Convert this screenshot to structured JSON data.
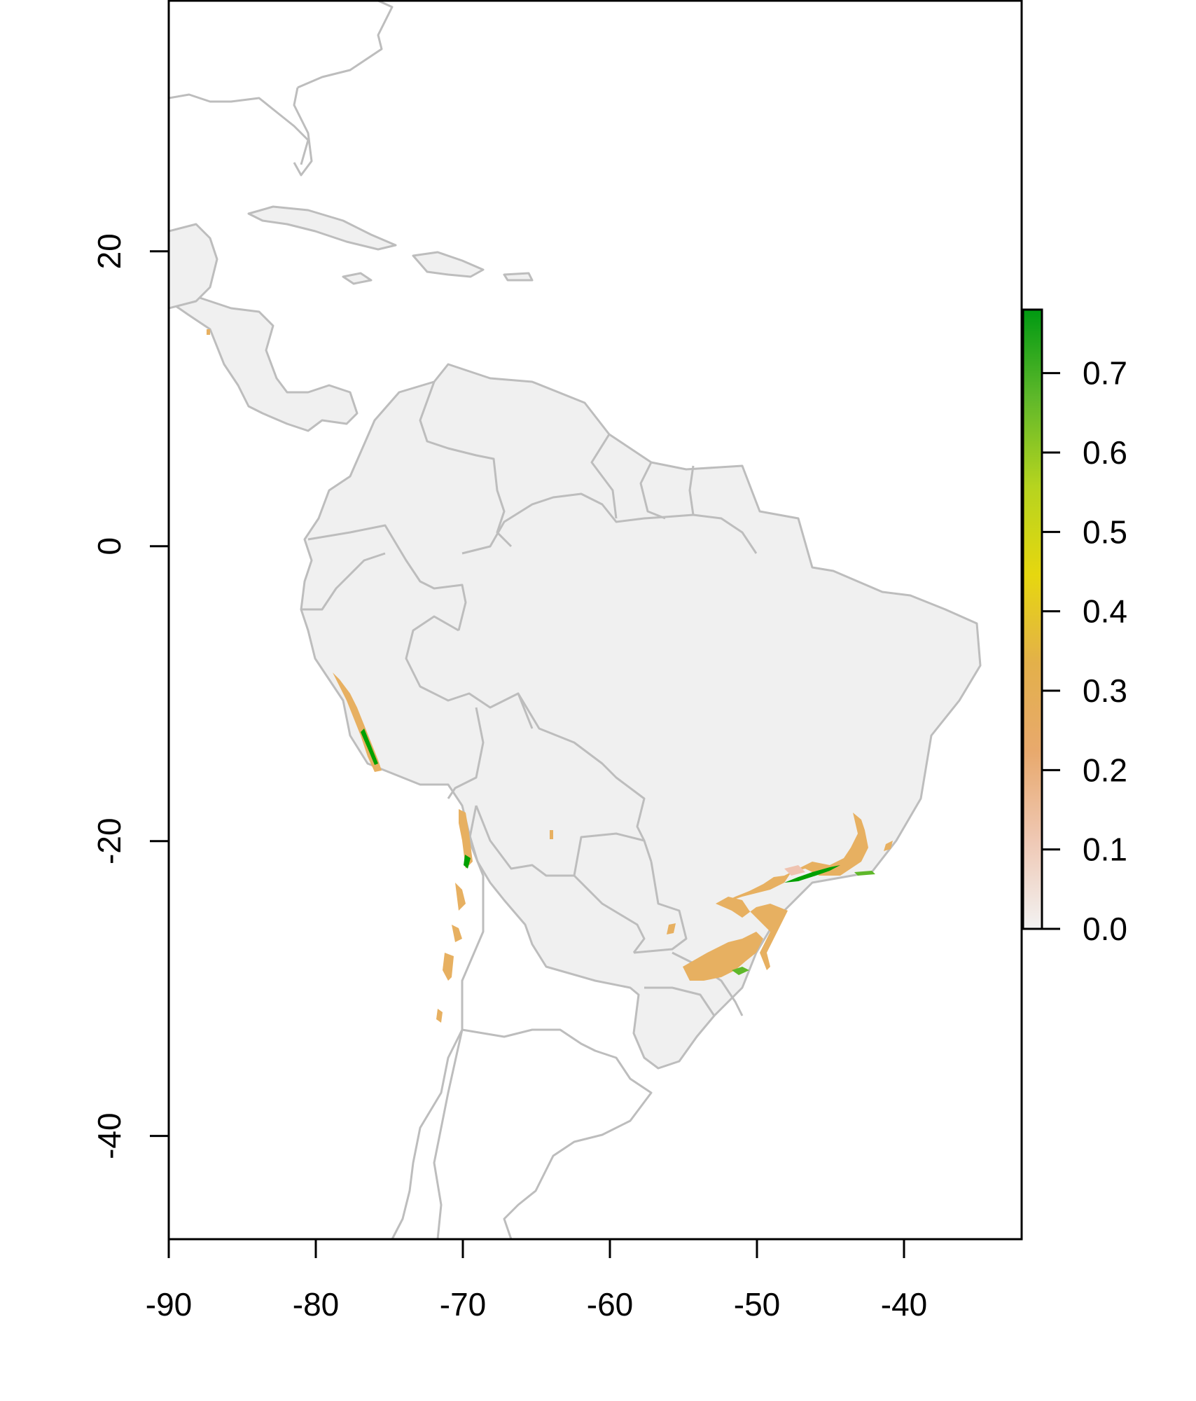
{
  "map": {
    "x_axis": {
      "ticks": [
        {
          "value": -90,
          "label": "-90"
        },
        {
          "value": -80,
          "label": "-80"
        },
        {
          "value": -70,
          "label": "-70"
        },
        {
          "value": -60,
          "label": "-60"
        },
        {
          "value": -50,
          "label": "-50"
        },
        {
          "value": -40,
          "label": "-40"
        }
      ],
      "range": [
        -90,
        -32
      ]
    },
    "y_axis": {
      "ticks": [
        {
          "value": 20,
          "label": "20"
        },
        {
          "value": 0,
          "label": "0"
        },
        {
          "value": -20,
          "label": "-20"
        },
        {
          "value": -40,
          "label": "-40"
        }
      ],
      "range": [
        -47,
        37
      ]
    },
    "colorbar": {
      "ticks": [
        {
          "value": 0.0,
          "label": "0.0"
        },
        {
          "value": 0.1,
          "label": "0.1"
        },
        {
          "value": 0.2,
          "label": "0.2"
        },
        {
          "value": 0.3,
          "label": "0.3"
        },
        {
          "value": 0.4,
          "label": "0.4"
        },
        {
          "value": 0.5,
          "label": "0.5"
        },
        {
          "value": 0.6,
          "label": "0.6"
        },
        {
          "value": 0.7,
          "label": "0.7"
        }
      ],
      "range": [
        0,
        0.78
      ],
      "colors": [
        "#f2f2f2",
        "#efc8b4",
        "#e8a96d",
        "#e3b04a",
        "#e6d70f",
        "#b6d41f",
        "#5fb82a",
        "#009a12"
      ]
    },
    "colors": {
      "background": "#ffffff",
      "land_fill": "#f0f0f0",
      "borders": "#bdbdbd",
      "suitability_low": "#e7b061",
      "suitability_pink": "#efc3b1",
      "suitability_high": "#00a000",
      "axis": "#000000"
    },
    "raster_extent": {
      "lon": [
        -90,
        -34
      ],
      "lat": [
        -33,
        37
      ]
    }
  }
}
